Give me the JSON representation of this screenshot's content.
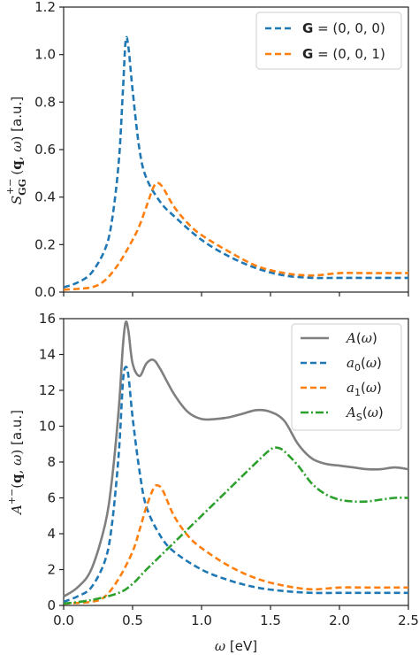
{
  "chart_data": [
    {
      "type": "line",
      "ylabel": "S⁺⁻_GG(q, ω) [a.u.]",
      "xlabel": "",
      "xlim": [
        0.0,
        2.5
      ],
      "ylim": [
        0.0,
        1.2
      ],
      "xticks": [
        "0.0",
        "0.5",
        "1.0",
        "1.5",
        "2.0",
        "2.5"
      ],
      "yticks": [
        "0.0",
        "0.2",
        "0.4",
        "0.6",
        "0.8",
        "1.0",
        "1.2"
      ],
      "legend": "top-right",
      "grid": false,
      "series": [
        {
          "name": "G = (0, 0, 0)",
          "color": "#1f77b4",
          "style": "dashed",
          "x": [
            0.0,
            0.1,
            0.2,
            0.3,
            0.35,
            0.4,
            0.43,
            0.45,
            0.47,
            0.5,
            0.55,
            0.6,
            0.7,
            0.8,
            1.0,
            1.2,
            1.4,
            1.6,
            1.8,
            2.0,
            2.2,
            2.5
          ],
          "y": [
            0.02,
            0.04,
            0.08,
            0.18,
            0.3,
            0.55,
            0.85,
            1.06,
            1.03,
            0.85,
            0.6,
            0.48,
            0.38,
            0.32,
            0.22,
            0.15,
            0.1,
            0.07,
            0.06,
            0.06,
            0.06,
            0.06
          ]
        },
        {
          "name": "G = (0, 0, 1)",
          "color": "#ff7f0e",
          "style": "dashed",
          "x": [
            0.0,
            0.2,
            0.3,
            0.4,
            0.5,
            0.55,
            0.6,
            0.65,
            0.68,
            0.72,
            0.8,
            0.9,
            1.0,
            1.2,
            1.4,
            1.6,
            1.8,
            2.0,
            2.2,
            2.5
          ],
          "y": [
            0.01,
            0.02,
            0.05,
            0.12,
            0.22,
            0.28,
            0.36,
            0.44,
            0.46,
            0.44,
            0.36,
            0.29,
            0.24,
            0.17,
            0.11,
            0.08,
            0.07,
            0.08,
            0.08,
            0.08
          ]
        }
      ]
    },
    {
      "type": "line",
      "ylabel": "A⁺⁻(q, ω) [a.u.]",
      "xlabel": "ω [eV]",
      "xlim": [
        0.0,
        2.5
      ],
      "ylim": [
        0,
        16
      ],
      "xticks": [
        "0.0",
        "0.5",
        "1.0",
        "1.5",
        "2.0",
        "2.5"
      ],
      "yticks": [
        "0",
        "2",
        "4",
        "6",
        "8",
        "10",
        "12",
        "14",
        "16"
      ],
      "legend": "top-right",
      "grid": false,
      "series": [
        {
          "name": "A(ω)",
          "color": "#7f7f7f",
          "style": "solid",
          "x": [
            0.0,
            0.1,
            0.2,
            0.3,
            0.35,
            0.4,
            0.43,
            0.45,
            0.47,
            0.5,
            0.55,
            0.6,
            0.65,
            0.7,
            0.8,
            0.9,
            1.0,
            1.1,
            1.2,
            1.3,
            1.4,
            1.5,
            1.6,
            1.7,
            1.8,
            1.9,
            2.0,
            2.1,
            2.2,
            2.3,
            2.4,
            2.5
          ],
          "y": [
            0.5,
            1.0,
            2.0,
            4.5,
            7.0,
            11.0,
            14.5,
            15.8,
            15.3,
            13.5,
            12.8,
            13.5,
            13.7,
            13.2,
            11.8,
            10.8,
            10.4,
            10.4,
            10.5,
            10.7,
            10.9,
            10.8,
            10.3,
            9.0,
            8.2,
            7.9,
            7.8,
            7.7,
            7.6,
            7.6,
            7.7,
            7.6
          ]
        },
        {
          "name": "a₀(ω)",
          "color": "#1f77b4",
          "style": "dashed",
          "x": [
            0.0,
            0.1,
            0.2,
            0.3,
            0.35,
            0.4,
            0.43,
            0.45,
            0.47,
            0.5,
            0.55,
            0.6,
            0.7,
            0.8,
            1.0,
            1.2,
            1.4,
            1.6,
            1.8,
            2.0,
            2.2,
            2.5
          ],
          "y": [
            0.2,
            0.5,
            1.0,
            2.5,
            4.5,
            8.5,
            12.5,
            13.3,
            12.8,
            10.5,
            7.5,
            5.5,
            3.9,
            3.0,
            2.0,
            1.4,
            1.0,
            0.8,
            0.7,
            0.7,
            0.7,
            0.7
          ]
        },
        {
          "name": "a₁(ω)",
          "color": "#ff7f0e",
          "style": "dashed",
          "x": [
            0.0,
            0.2,
            0.3,
            0.4,
            0.5,
            0.55,
            0.6,
            0.65,
            0.68,
            0.72,
            0.8,
            0.9,
            1.0,
            1.2,
            1.4,
            1.6,
            1.8,
            2.0,
            2.2,
            2.5
          ],
          "y": [
            0.1,
            0.2,
            0.5,
            1.5,
            3.0,
            4.2,
            5.5,
            6.5,
            6.7,
            6.4,
            5.0,
            3.9,
            3.2,
            2.2,
            1.5,
            1.1,
            0.9,
            1.0,
            1.0,
            1.0
          ]
        },
        {
          "name": "A_S(ω)",
          "color": "#2ca02c",
          "style": "dashdot",
          "x": [
            0.0,
            0.2,
            0.4,
            0.5,
            0.6,
            0.8,
            1.0,
            1.2,
            1.4,
            1.5,
            1.55,
            1.6,
            1.7,
            1.8,
            1.9,
            2.0,
            2.1,
            2.2,
            2.3,
            2.4,
            2.5
          ],
          "y": [
            0.1,
            0.3,
            0.7,
            1.2,
            2.0,
            3.5,
            5.0,
            6.5,
            8.0,
            8.7,
            8.8,
            8.6,
            7.8,
            6.8,
            6.2,
            5.9,
            5.8,
            5.8,
            5.9,
            6.0,
            6.0
          ]
        }
      ]
    }
  ],
  "panels": [
    {
      "ylabel_text": "[a.u.]",
      "legend": [
        "G = (0, 0, 0)",
        "G = (0, 0, 1)"
      ]
    },
    {
      "ylabel_text": "[a.u.]",
      "xlabel_text": "[eV]",
      "legend": [
        "A(ω)",
        "a₀(ω)",
        "a₁(ω)",
        "A_S(ω)"
      ]
    }
  ]
}
